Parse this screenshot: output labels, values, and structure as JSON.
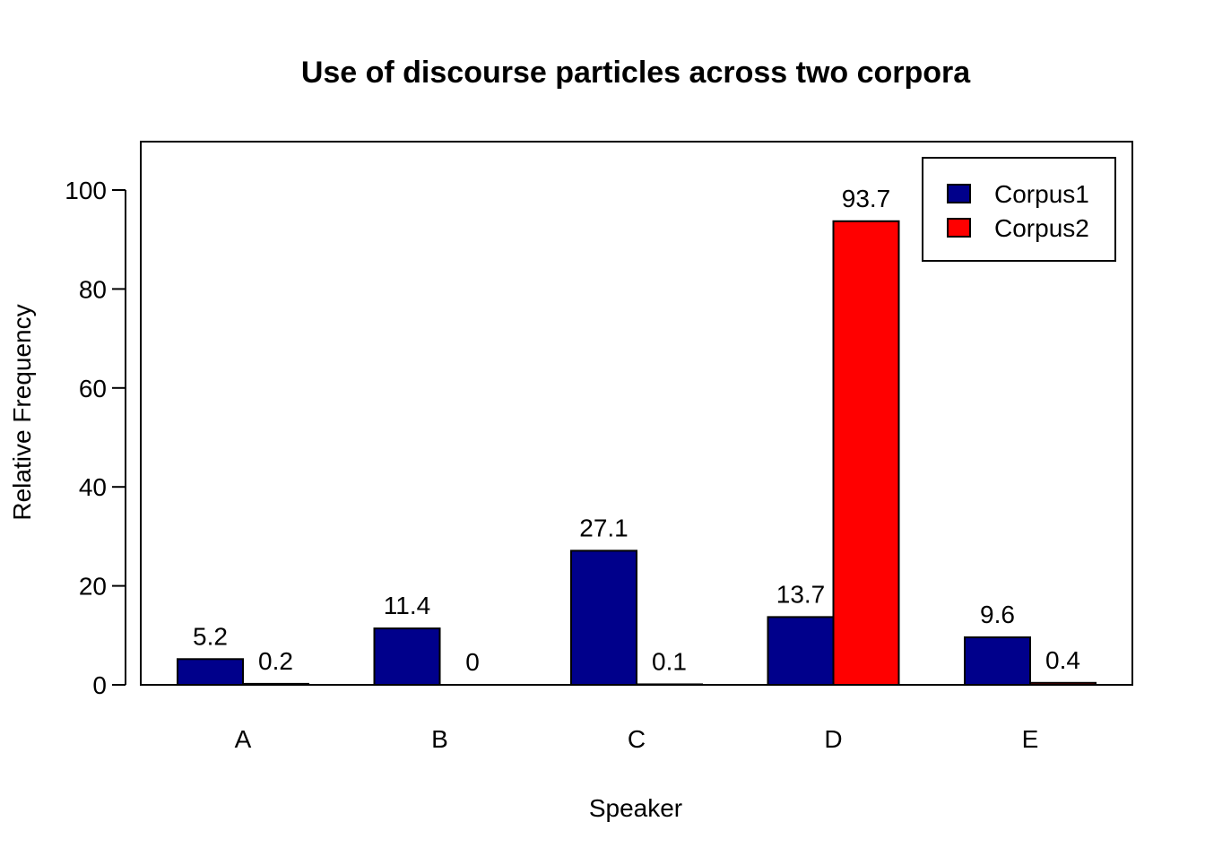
{
  "chart_data": {
    "type": "bar",
    "title": "Use of discourse particles across two corpora",
    "xlabel": "Speaker",
    "ylabel": "Relative Frequency",
    "categories": [
      "A",
      "B",
      "C",
      "D",
      "E"
    ],
    "series": [
      {
        "name": "Corpus1",
        "color": "#00008B",
        "values": [
          5.2,
          11.4,
          27.1,
          13.7,
          9.6
        ],
        "labels": [
          "5.2",
          "11.4",
          "27.1",
          "13.7",
          "9.6"
        ]
      },
      {
        "name": "Corpus2",
        "color": "#FF0000",
        "values": [
          0.2,
          0,
          0.1,
          93.7,
          0.4
        ],
        "labels": [
          "0.2",
          "0",
          "0.1",
          "93.7",
          "0.4"
        ]
      }
    ],
    "ylim": [
      0,
      110
    ],
    "yticks": [
      0,
      20,
      40,
      60,
      80,
      100
    ],
    "ytick_labels": [
      "0",
      "20",
      "40",
      "60",
      "80",
      "100"
    ],
    "grid": false,
    "legend_position": "top-right",
    "bar_layout": "grouped"
  }
}
